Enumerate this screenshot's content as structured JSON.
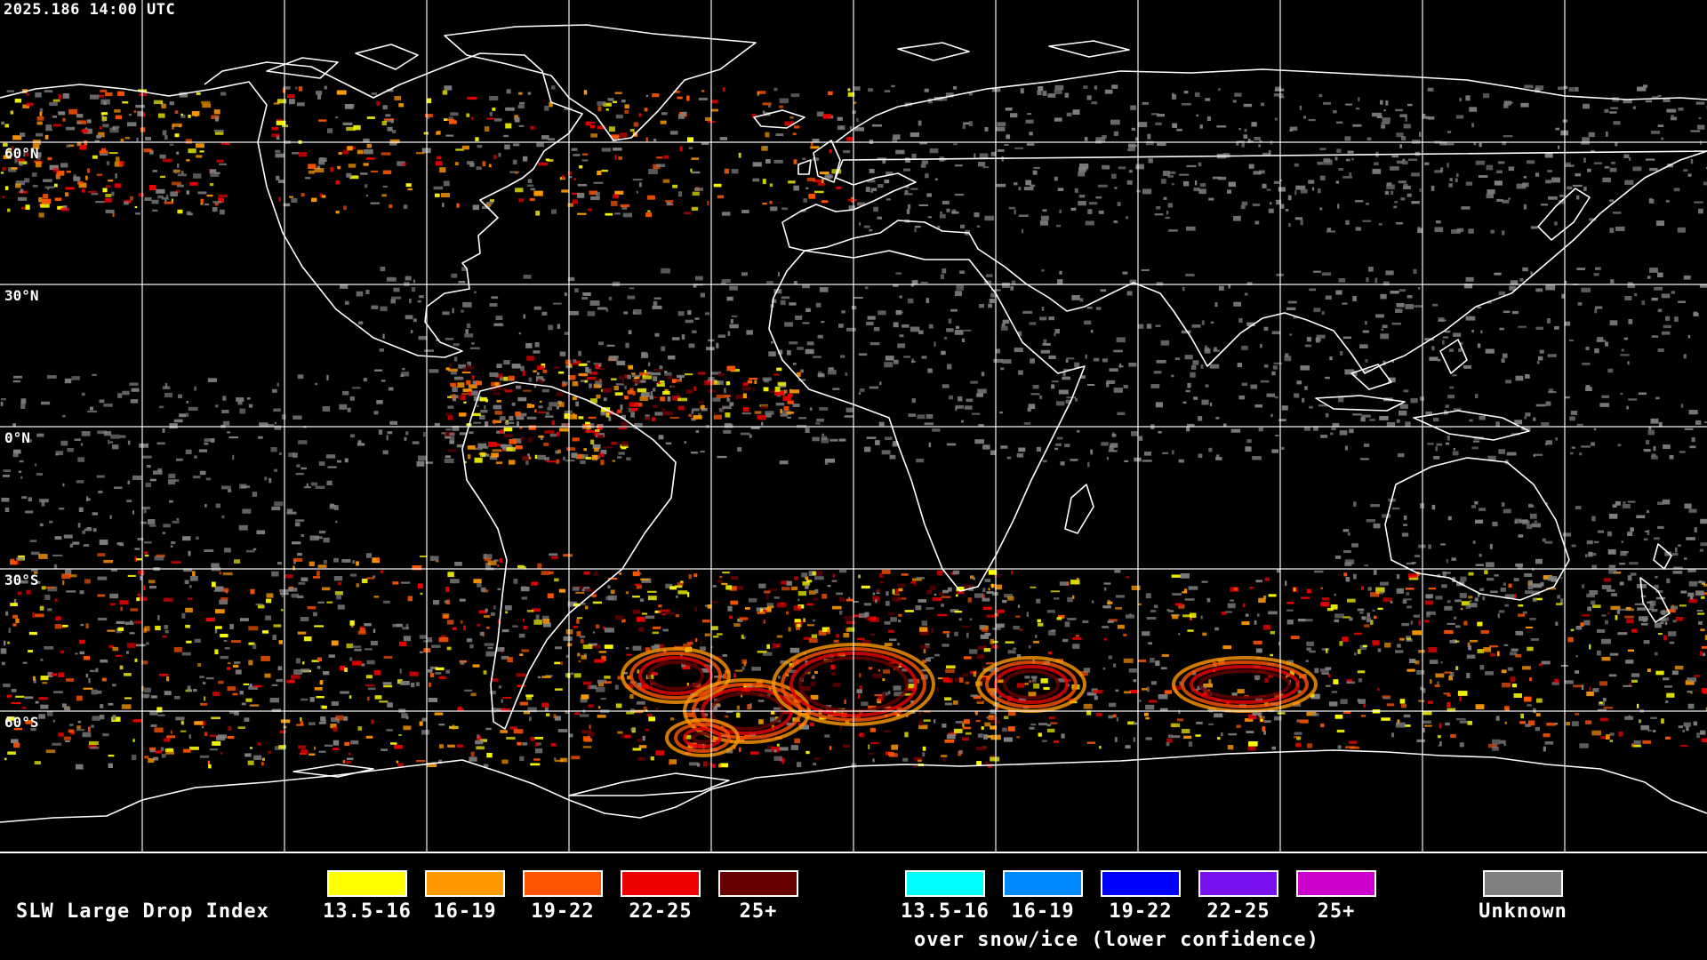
{
  "header": {
    "timestamp": "2025.186 14:00 UTC"
  },
  "map": {
    "lat_labels": [
      "60°N",
      "30°N",
      "0°N",
      "30°S",
      "60°S"
    ],
    "colors": {
      "background": "#000000",
      "coastline": "#ffffff",
      "grid": "#ffffff",
      "unknown": "#808080"
    }
  },
  "legend": {
    "title": "SLW Large Drop Index",
    "over_snow_note": "over snow/ice (lower confidence)",
    "standard": [
      {
        "label": "13.5-16",
        "color": "#ffff00"
      },
      {
        "label": "16-19",
        "color": "#ff9900"
      },
      {
        "label": "19-22",
        "color": "#ff5500"
      },
      {
        "label": "22-25",
        "color": "#ee0000"
      },
      {
        "label": "25+",
        "color": "#660000"
      }
    ],
    "snow_ice": [
      {
        "label": "13.5-16",
        "color": "#00ffff"
      },
      {
        "label": "16-19",
        "color": "#0088ff"
      },
      {
        "label": "19-22",
        "color": "#0000ff"
      },
      {
        "label": "22-25",
        "color": "#7711ee"
      },
      {
        "label": "25+",
        "color": "#cc00cc"
      }
    ],
    "unknown": {
      "label": "Unknown",
      "color": "#808080"
    }
  }
}
